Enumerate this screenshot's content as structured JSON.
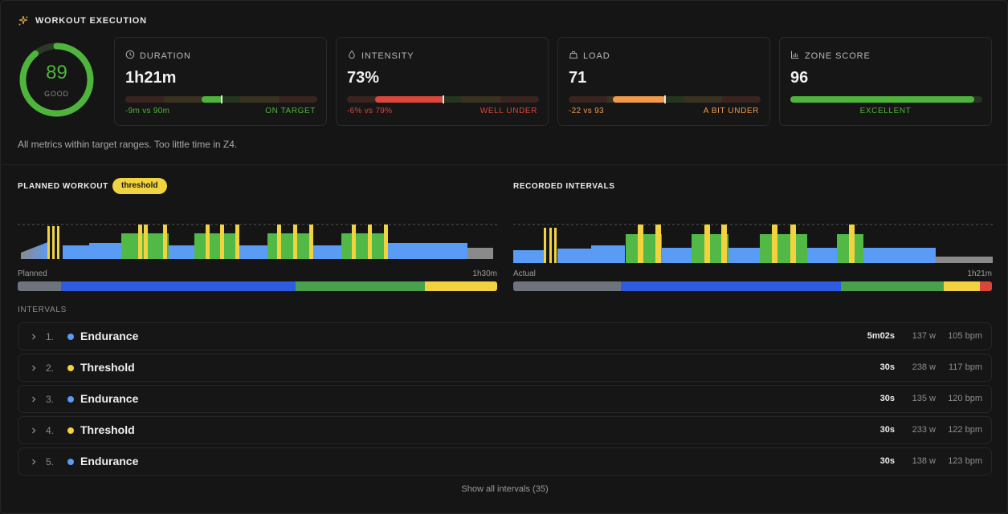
{
  "header": {
    "title": "WORKOUT EXECUTION",
    "icon": "sparkle-icon"
  },
  "score": {
    "value": "89",
    "label": "GOOD",
    "fraction": 0.89,
    "color": "#4fb43b"
  },
  "cards": [
    {
      "id": "duration",
      "icon": "clock-icon",
      "label": "DURATION",
      "value": "1h21m",
      "left_note": "-9m vs 90m",
      "right_note": "ON TARGET",
      "note_color": "#4fb43b"
    },
    {
      "id": "intensity",
      "icon": "drop-icon",
      "label": "INTENSITY",
      "value": "73%",
      "left_note": "-6% vs 79%",
      "right_note": "WELL UNDER",
      "note_color": "#d9473a"
    },
    {
      "id": "load",
      "icon": "weight-icon",
      "label": "LOAD",
      "value": "71",
      "left_note": "-22 vs 93",
      "right_note": "A BIT UNDER",
      "note_color": "#f09a4a"
    },
    {
      "id": "zone",
      "icon": "bar-chart-icon",
      "label": "ZONE SCORE",
      "value": "96",
      "center_note": "EXCELLENT",
      "note_color": "#4fb43b"
    }
  ],
  "summary": "All metrics within target ranges. Too little time in Z4.",
  "planned": {
    "title": "PLANNED WORKOUT",
    "tag": "threshold",
    "left_label": "Planned",
    "right_label": "1h30m"
  },
  "recorded": {
    "title": "RECORDED INTERVALS",
    "left_label": "Actual",
    "right_label": "1h21m"
  },
  "intervals_title": "INTERVALS",
  "intervals": [
    {
      "index": "1.",
      "name": "Endurance",
      "color": "#5a9bf5",
      "duration": "5m02s",
      "watts": "137 w",
      "bpm": "105 bpm"
    },
    {
      "index": "2.",
      "name": "Threshold",
      "color": "#f1d23f",
      "duration": "30s",
      "watts": "238 w",
      "bpm": "117 bpm"
    },
    {
      "index": "3.",
      "name": "Endurance",
      "color": "#5a9bf5",
      "duration": "30s",
      "watts": "135 w",
      "bpm": "120 bpm"
    },
    {
      "index": "4.",
      "name": "Threshold",
      "color": "#f1d23f",
      "duration": "30s",
      "watts": "233 w",
      "bpm": "122 bpm"
    },
    {
      "index": "5.",
      "name": "Endurance",
      "color": "#5a9bf5",
      "duration": "30s",
      "watts": "138 w",
      "bpm": "123 bpm"
    }
  ],
  "show_all": "Show all intervals (35)",
  "colors": {
    "endurance": "#5a9bf5",
    "threshold": "#f1d23f",
    "tempo": "#52b947",
    "recovery": "#8a8a8a",
    "good": "#4fb43b",
    "bad": "#d9473a",
    "warn": "#f09a4a"
  }
}
